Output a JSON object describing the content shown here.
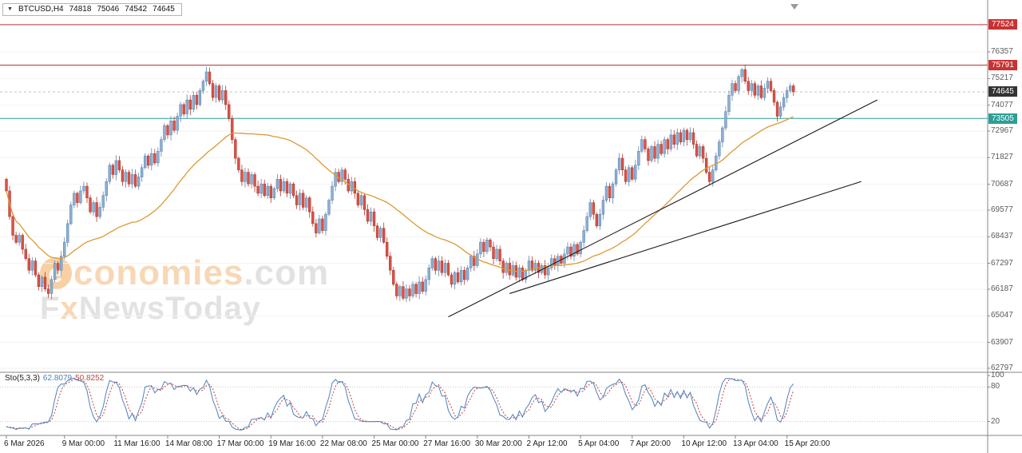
{
  "symbol_bar": {
    "dropdown_icon": "▼",
    "title": "BTCUSD,H4",
    "open": "74818",
    "high": "75046",
    "low": "74542",
    "close": "74645"
  },
  "indicator": {
    "label": "Sto(5,3,3)",
    "value1": "62.8079",
    "value2": "50.8252"
  },
  "watermark": {
    "logo_letter": "e",
    "line1_main": "conomies",
    "line1_suffix": ".com",
    "line2_f": "F",
    "line2_x": "x",
    "line2_rest": "NewsToday"
  },
  "colors": {
    "up_fill": "#8fb0d2",
    "up_stroke": "#5f87b0",
    "down_fill": "#dd5146",
    "down_stroke": "#b23a31",
    "ma": "#dd9933",
    "grid": "#f2f2f2",
    "axis_line": "#858585",
    "axis_text": "#5a5a5a",
    "trendline": "#1a1a1a",
    "stoch_k": "#4f81bd",
    "stoch_d": "#c0443e",
    "current_line": "#c0c0c0",
    "marker": "#9a9a9a"
  },
  "chart_data": {
    "type": "candlestick",
    "symbol": "BTCUSD",
    "timeframe": "H4",
    "title": "BTCUSD,H4 74818 75046 74542 74645",
    "ohlc_display": {
      "open": 74818,
      "high": 75046,
      "low": 74542,
      "close": 74645
    },
    "current_price": 74645,
    "price_axis_ticks": [
      76357,
      75217,
      74077,
      72967,
      71827,
      70687,
      69577,
      68437,
      67297,
      66187,
      65047,
      63907,
      62797
    ],
    "levels": [
      {
        "price": 77524,
        "color": "#bb3333",
        "badge": "#c83232",
        "dashed": false
      },
      {
        "price": 75791,
        "color": "#bb3333",
        "badge": "#c83232",
        "dashed": false
      },
      {
        "price": 74645,
        "color": "#c0c0c0",
        "badge": "#333333",
        "dashed": true
      },
      {
        "price": 73505,
        "color": "#2d9e96",
        "badge": "#2d9e96",
        "dashed": false
      }
    ],
    "time_axis": [
      {
        "label": "6 Mar 2026",
        "index": 0
      },
      {
        "label": "9 Mar 00:00",
        "index": 18
      },
      {
        "label": "11 Mar 16:00",
        "index": 34
      },
      {
        "label": "14 Mar 08:00",
        "index": 50
      },
      {
        "label": "17 Mar 00:00",
        "index": 66
      },
      {
        "label": "19 Mar 16:00",
        "index": 82
      },
      {
        "label": "22 Mar 08:00",
        "index": 98
      },
      {
        "label": "25 Mar 00:00",
        "index": 114
      },
      {
        "label": "27 Mar 16:00",
        "index": 130
      },
      {
        "label": "30 Mar 20:00",
        "index": 146
      },
      {
        "label": "2 Apr 12:00",
        "index": 162
      },
      {
        "label": "5 Apr 04:00",
        "index": 178
      },
      {
        "label": "7 Apr 20:00",
        "index": 194
      },
      {
        "label": "10 Apr 12:00",
        "index": 210
      },
      {
        "label": "13 Apr 04:00",
        "index": 226
      },
      {
        "label": "15 Apr 20:00",
        "index": 242
      }
    ],
    "first_open": 70900,
    "closes": [
      70400,
      69300,
      68500,
      68200,
      68500,
      67900,
      67500,
      67000,
      67400,
      66800,
      66300,
      66700,
      66200,
      66000,
      66600,
      67300,
      67000,
      67600,
      68200,
      69000,
      69800,
      70300,
      69900,
      70400,
      70600,
      70100,
      69500,
      69900,
      69300,
      69700,
      70200,
      70800,
      71500,
      71100,
      71700,
      71300,
      70800,
      71200,
      70700,
      71100,
      70600,
      71000,
      71400,
      71900,
      71500,
      72000,
      71600,
      72100,
      72600,
      73200,
      72800,
      73400,
      73000,
      73600,
      74100,
      73700,
      74300,
      73900,
      74500,
      74100,
      74700,
      75100,
      75500,
      75000,
      74400,
      74900,
      74300,
      74700,
      74100,
      73500,
      72600,
      71800,
      71300,
      70800,
      71200,
      70700,
      71100,
      70600,
      70300,
      70700,
      70200,
      70600,
      70100,
      70500,
      70900,
      70400,
      70800,
      70300,
      70700,
      70200,
      69800,
      70300,
      69700,
      70100,
      69500,
      69000,
      68600,
      69200,
      68700,
      69400,
      70000,
      70600,
      71200,
      70800,
      71300,
      70900,
      70400,
      70800,
      70300,
      69800,
      70200,
      69600,
      69100,
      69500,
      68900,
      68400,
      68800,
      68200,
      67600,
      67000,
      66400,
      65900,
      66300,
      65800,
      66200,
      65900,
      66400,
      66000,
      66500,
      66100,
      66600,
      67100,
      67500,
      67000,
      67400,
      66900,
      67300,
      66800,
      66400,
      66900,
      66500,
      67000,
      66600,
      67100,
      67600,
      67200,
      67700,
      68200,
      67800,
      68300,
      68000,
      67500,
      67900,
      67400,
      66900,
      67300,
      66800,
      67200,
      66700,
      67100,
      66600,
      67000,
      67400,
      67000,
      67300,
      66900,
      67200,
      66800,
      67100,
      67500,
      67200,
      67600,
      67300,
      67700,
      68000,
      67600,
      68100,
      67700,
      68200,
      68700,
      69300,
      69900,
      69400,
      68900,
      69400,
      70000,
      70600,
      70100,
      70700,
      71300,
      71800,
      71300,
      70800,
      71400,
      70900,
      71500,
      72100,
      72600,
      72200,
      71700,
      72300,
      71800,
      72400,
      72000,
      72600,
      72200,
      72800,
      72400,
      72900,
      72500,
      73000,
      72600,
      72900,
      72400,
      71900,
      72300,
      71800,
      71200,
      70800,
      71300,
      71900,
      72500,
      73100,
      73800,
      74500,
      75000,
      74700,
      75300,
      75600,
      75100,
      74700,
      75000,
      74500,
      74900,
      74400,
      74800,
      75100,
      74700,
      74200,
      73600,
      74000,
      74400,
      74700,
      74900,
      74645
    ],
    "moving_average": {
      "type": "SMA",
      "period": 40,
      "color": "#dd9933"
    },
    "trendlines": [
      {
        "x1_index": 137,
        "y1_price": 65000,
        "x2_index": 270,
        "y2_price": 74300
      },
      {
        "x1_index": 156,
        "y1_price": 66000,
        "x2_index": 265,
        "y2_price": 70800
      }
    ],
    "stochastic": {
      "label": "Sto(5,3,3)",
      "k_period": 5,
      "d_period": 3,
      "slowing": 3,
      "k_value": 62.8079,
      "d_value": 50.8252,
      "ticks": [
        100,
        80,
        20
      ],
      "overbought": 80,
      "oversold": 20,
      "range": [
        0,
        100
      ]
    }
  }
}
